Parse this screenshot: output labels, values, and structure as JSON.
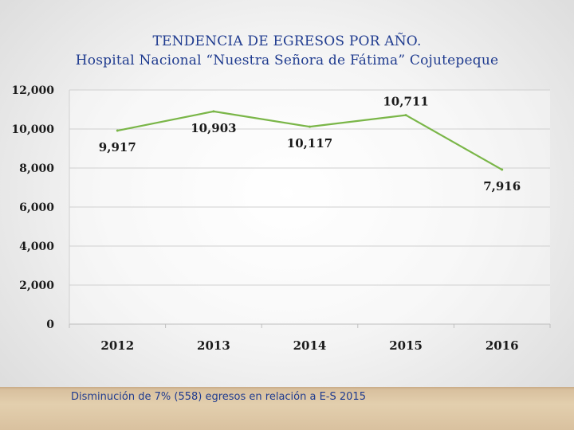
{
  "header": {
    "title_line1": "TENDENCIA DE EGRESOS POR AÑO.",
    "title_line2": "Hospital Nacional “Nuestra Señora de Fátima” Cojutepeque"
  },
  "footer": {
    "note": "Disminución de 7% (558) egresos  en relación a E-S 2015"
  },
  "colors": {
    "line": "#7ab648",
    "title": "#1f3b8f",
    "gridline": "#d0d0d0",
    "text": "#1a1a1a"
  },
  "chart_data": {
    "type": "line",
    "title": "TENDENCIA DE EGRESOS POR AÑO.",
    "subtitle": "Hospital Nacional “Nuestra Señora de Fátima” Cojutepeque",
    "categories": [
      "2012",
      "2013",
      "2014",
      "2015",
      "2016"
    ],
    "series": [
      {
        "name": "Egresos",
        "values": [
          9917,
          10903,
          10117,
          10711,
          7916
        ]
      }
    ],
    "data_labels": [
      "9,917",
      "10,903",
      "10,117",
      "10,711",
      "7,916"
    ],
    "y_ticks": [
      0,
      2000,
      4000,
      6000,
      8000,
      10000,
      12000
    ],
    "y_tick_labels": [
      "0",
      "2,000",
      "4,000",
      "6,000",
      "8,000",
      "10,000",
      "12,000"
    ],
    "ylim": [
      0,
      12000
    ],
    "grid": true,
    "xlabel": "",
    "ylabel": ""
  }
}
